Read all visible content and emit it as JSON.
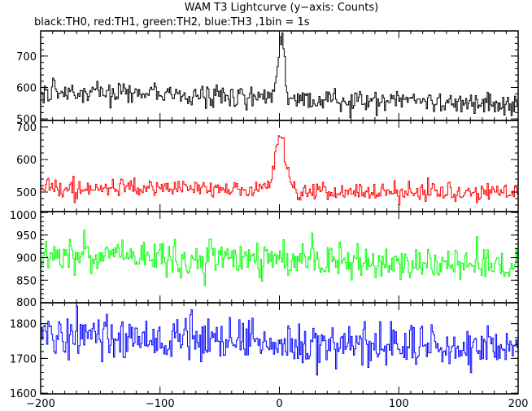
{
  "chart_data": {
    "type": "line",
    "title": "WAM T3 Lightcurve (y−axis: Counts)",
    "subtitle": "black:TH0, red:TH1, green:TH2, blue:TH3 ,1bin = 1s",
    "x_ticks": [
      "−200",
      "−100",
      "0",
      "100",
      "200"
    ],
    "x_tick_values": [
      -200,
      -100,
      0,
      100,
      200
    ],
    "xlim": [
      -200,
      200
    ],
    "grid": false,
    "panels": [
      {
        "name": "TH0",
        "color": "#000000",
        "ylim": [
          495,
          780
        ],
        "y_ticks": [
          "500",
          "600",
          "700"
        ],
        "y_tick_values": [
          500,
          600,
          700
        ],
        "baseline": 565,
        "noise": 26,
        "peak_x": 1,
        "peak_height": 175,
        "peak_width": 3,
        "trend": -0.1
      },
      {
        "name": "TH1",
        "color": "#ff0000",
        "ylim": [
          440,
          720
        ],
        "y_ticks": [
          "500",
          "600",
          "700"
        ],
        "y_tick_values": [
          500,
          600,
          700
        ],
        "baseline": 505,
        "noise": 20,
        "peak_x": 0,
        "peak_height": 185,
        "peak_width": 4,
        "trend": -0.05
      },
      {
        "name": "TH2",
        "color": "#00ff00",
        "ylim": [
          800,
          1002
        ],
        "y_ticks": [
          "800",
          "850",
          "900",
          "950",
          "1000"
        ],
        "y_tick_values": [
          800,
          850,
          900,
          950,
          1000
        ],
        "baseline": 893,
        "noise": 27,
        "peak_x": 0,
        "peak_height": 20,
        "peak_width": 3,
        "trend": -0.06
      },
      {
        "name": "TH3",
        "color": "#0000ff",
        "ylim": [
          1598,
          1860
        ],
        "y_ticks": [
          "1600",
          "1700",
          "1800"
        ],
        "y_tick_values": [
          1600,
          1700,
          1800
        ],
        "baseline": 1745,
        "noise": 42,
        "peak_x": 0,
        "peak_height": 10,
        "peak_width": 3,
        "trend": -0.12
      }
    ]
  }
}
